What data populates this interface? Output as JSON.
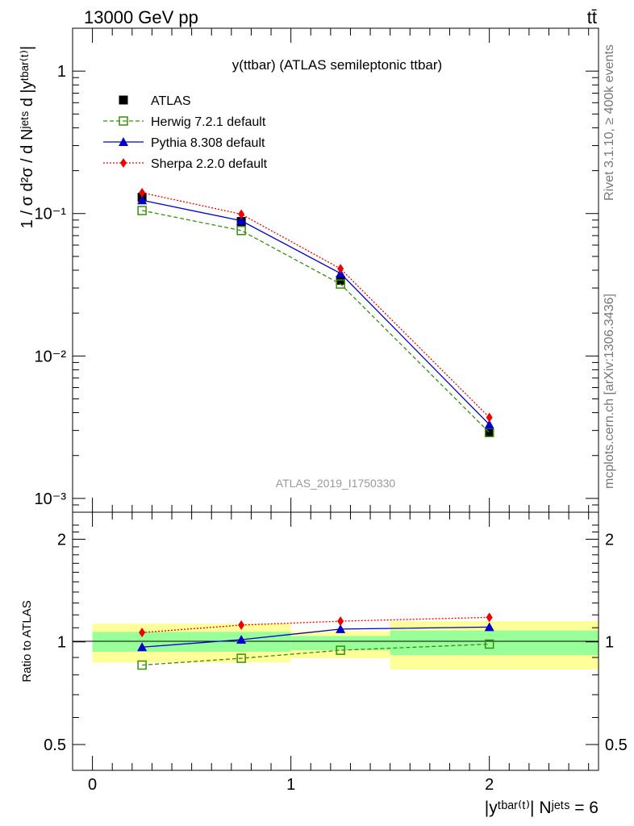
{
  "header": {
    "energy_label": "13000 GeV pp",
    "process_label": "tt̄"
  },
  "side_labels": {
    "rivet": "Rivet 3.1.10, ≥ 400k events",
    "mcplots": "mcplots.cern.ch [arXiv:1306.3436]"
  },
  "colors": {
    "data": "#000000",
    "herwig": "#3a8c0f",
    "pythia": "#0000cc",
    "sherpa": "#ee0000",
    "band_inner": "#99ff99",
    "band_outer": "#ffff99",
    "watermark": "#999999"
  },
  "chart_data": [
    {
      "type": "line",
      "title": "y(ttbar) (ATLAS semileptonic ttbar)",
      "watermark": "ATLAS_2019_I1750330",
      "ylabel": "1 / σ d²σ / d Nʲᵉᵗˢ d |yᵗᵇᵃʳ⁽ᵗ⁾|",
      "yscale": "log",
      "ylim": [
        0.0008,
        2.0
      ],
      "xlim": [
        -0.1,
        2.55
      ],
      "yticks": [
        "1",
        "10⁻¹",
        "10⁻²",
        "10⁻³"
      ],
      "legend_position": "top-left",
      "bins": [
        [
          0,
          0.5
        ],
        [
          0.5,
          1.0
        ],
        [
          1.0,
          1.5
        ],
        [
          1.5,
          2.55
        ]
      ],
      "x": [
        0.25,
        0.75,
        1.25,
        2.0
      ],
      "series": [
        {
          "name": "ATLAS",
          "values": [
            0.13,
            0.088,
            0.034,
            0.0029
          ]
        },
        {
          "name": "Herwig 7.2.1 default",
          "values": [
            0.105,
            0.076,
            0.032,
            0.0029
          ]
        },
        {
          "name": "Pythia 8.308 default",
          "values": [
            0.124,
            0.089,
            0.038,
            0.0033
          ]
        },
        {
          "name": "Sherpa 2.2.0 default",
          "values": [
            0.14,
            0.099,
            0.041,
            0.0037
          ]
        }
      ]
    },
    {
      "type": "line",
      "ylabel": "Ratio to ATLAS",
      "xlabel": "|yᵗᵇᵃʳ⁽ᵗ⁾| Nʲᵉᵗˢ = 6",
      "yscale": "log",
      "ylim": [
        0.42,
        2.4
      ],
      "yticks": [
        "2",
        "1",
        "0.5"
      ],
      "xticks": [
        "0",
        "1",
        "2"
      ],
      "bins": [
        [
          0,
          0.5
        ],
        [
          0.5,
          1.0
        ],
        [
          1.0,
          1.5
        ],
        [
          1.5,
          2.55
        ]
      ],
      "band_inner": [
        [
          0.935,
          1.07
        ],
        [
          0.935,
          1.07
        ],
        [
          0.945,
          1.04
        ],
        [
          0.915,
          1.08
        ]
      ],
      "band_outer": [
        [
          0.87,
          1.13
        ],
        [
          0.87,
          1.13
        ],
        [
          0.895,
          1.075
        ],
        [
          0.83,
          1.15
        ]
      ],
      "x": [
        0.25,
        0.75,
        1.25,
        2.0
      ],
      "series": [
        {
          "name": "Herwig 7.2.1 default",
          "values": [
            0.855,
            0.895,
            0.945,
            0.985
          ]
        },
        {
          "name": "Pythia 8.308 default",
          "values": [
            0.965,
            1.015,
            1.09,
            1.105
          ]
        },
        {
          "name": "Sherpa 2.2.0 default",
          "values": [
            1.065,
            1.12,
            1.15,
            1.18
          ]
        }
      ]
    }
  ]
}
